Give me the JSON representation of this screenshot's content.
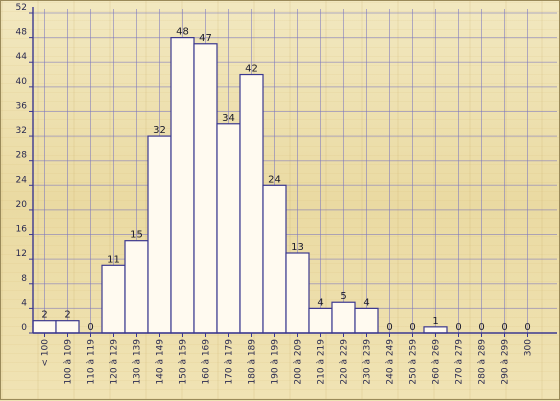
{
  "chart_data": {
    "type": "bar",
    "title": "",
    "xlabel": "",
    "ylabel": "",
    "ylim": [
      0,
      52
    ],
    "yticks": [
      0,
      4,
      8,
      12,
      16,
      20,
      24,
      28,
      32,
      36,
      40,
      44,
      48,
      52
    ],
    "grid": true,
    "categories": [
      "< 100",
      "100 à 109",
      "110 à 119",
      "120 à 129",
      "130 à 139",
      "140 à 149",
      "150 à 159",
      "160 à 169",
      "170 à 179",
      "180 à 189",
      "190 à 199",
      "200 à 209",
      "210 à 219",
      "220 à 229",
      "230 à 239",
      "240 à 249",
      "250 à 259",
      "260 à 269",
      "270 à 279",
      "280 à 289",
      "290 à 299",
      "300"
    ],
    "values": [
      2,
      2,
      0,
      11,
      15,
      32,
      48,
      47,
      34,
      42,
      24,
      13,
      4,
      5,
      4,
      0,
      0,
      1,
      0,
      0,
      0,
      0
    ],
    "colors": {
      "bar_fill": "#fffaf0",
      "bar_stroke": "#3b3890",
      "grid": "#7a75c0",
      "background": "#efe3b4"
    }
  }
}
